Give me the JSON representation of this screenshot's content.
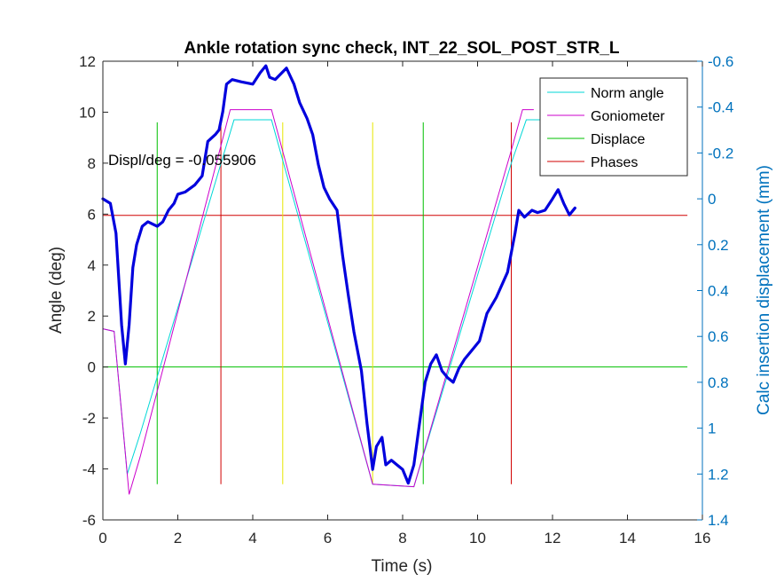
{
  "chart_data": {
    "type": "line",
    "title": "Ankle rotation sync check, INT_22_SOL_POST_STR_L",
    "xlabel": "Time (s)",
    "ylabel": "Angle (deg)",
    "ylabel_right": "Calc insertion displacement (mm)",
    "xlim": [
      0,
      16
    ],
    "ylim": [
      -6,
      12
    ],
    "ylim_right_reversed": [
      -0.6,
      1.4
    ],
    "x_ticks": [
      "0",
      "2",
      "4",
      "6",
      "8",
      "10",
      "12",
      "14",
      "16"
    ],
    "y_ticks": [
      "-6",
      "-4",
      "-2",
      "0",
      "2",
      "4",
      "6",
      "8",
      "10",
      "12"
    ],
    "y_right_ticks": [
      "-0.6",
      "-0.4",
      "-0.2",
      "0",
      "0.2",
      "0.4",
      "0.6",
      "0.8",
      "1",
      "1.2",
      "1.4"
    ],
    "annotation": "Displ/deg = -0.055906",
    "legend_position": "top-right",
    "grid": false,
    "colors": {
      "norm_angle": "#00D7D7",
      "goniometer": "#CC00CC",
      "displace": "#00C000",
      "phases": "#D00000",
      "yellow_markers": "#E6E600",
      "displacement_series": "#0000DD",
      "right_axis": "#0072BD"
    },
    "series": [
      {
        "name": "Norm angle",
        "axis": "left",
        "x": [
          0,
          0.3,
          0.65,
          1.0,
          3.5,
          4.5,
          7.2,
          8.3,
          10.9,
          11.3,
          12.0
        ],
        "y": [
          1.5,
          1.4,
          -4.2,
          -2.6,
          9.7,
          9.7,
          -4.6,
          -4.7,
          8.0,
          9.7,
          9.7
        ]
      },
      {
        "name": "Goniometer",
        "axis": "left",
        "x": [
          0,
          0.3,
          0.7,
          1.0,
          3.4,
          4.5,
          7.2,
          8.3,
          10.9,
          11.2,
          11.5
        ],
        "y": [
          1.5,
          1.4,
          -5.0,
          -3.5,
          10.1,
          10.1,
          -4.6,
          -4.7,
          8.5,
          10.1,
          10.1
        ]
      },
      {
        "name": "Displacement",
        "axis": "right",
        "x": [
          0,
          0.2,
          0.35,
          0.5,
          0.6,
          0.7,
          0.8,
          0.9,
          1.05,
          1.2,
          1.45,
          1.6,
          1.75,
          1.9,
          2.0,
          2.2,
          2.45,
          2.65,
          2.8,
          3.0,
          3.1,
          3.2,
          3.3,
          3.45,
          3.7,
          4.0,
          4.2,
          4.35,
          4.45,
          4.6,
          4.9,
          5.1,
          5.25,
          5.45,
          5.6,
          5.75,
          5.9,
          6.05,
          6.25,
          6.4,
          6.55,
          6.7,
          6.9,
          7.05,
          7.2,
          7.3,
          7.45,
          7.55,
          7.7,
          7.85,
          8.0,
          8.15,
          8.3,
          8.45,
          8.6,
          8.75,
          8.9,
          9.05,
          9.2,
          9.35,
          9.5,
          9.65,
          9.85,
          10.05,
          10.25,
          10.5,
          10.8,
          11.0,
          11.1,
          11.25,
          11.45,
          11.6,
          11.8,
          12.0,
          12.15,
          12.3,
          12.45,
          12.6
        ],
        "y": [
          0.0,
          0.02,
          0.15,
          0.55,
          0.72,
          0.55,
          0.3,
          0.2,
          0.12,
          0.1,
          0.12,
          0.1,
          0.05,
          0.02,
          -0.02,
          -0.03,
          -0.06,
          -0.1,
          -0.25,
          -0.28,
          -0.3,
          -0.38,
          -0.5,
          -0.52,
          -0.51,
          -0.5,
          -0.55,
          -0.58,
          -0.53,
          -0.52,
          -0.57,
          -0.5,
          -0.42,
          -0.35,
          -0.28,
          -0.15,
          -0.05,
          0.0,
          0.05,
          0.25,
          0.42,
          0.58,
          0.75,
          0.98,
          1.18,
          1.08,
          1.04,
          1.16,
          1.14,
          1.16,
          1.18,
          1.24,
          1.16,
          0.98,
          0.8,
          0.72,
          0.68,
          0.75,
          0.78,
          0.8,
          0.74,
          0.7,
          0.66,
          0.62,
          0.5,
          0.43,
          0.32,
          0.15,
          0.05,
          0.08,
          0.05,
          0.06,
          0.05,
          0.0,
          -0.04,
          0.02,
          0.07,
          0.04
        ]
      },
      {
        "name": "Displace",
        "axis": "left",
        "kind": "reference",
        "x": [
          0,
          15.6
        ],
        "y": [
          0,
          0
        ]
      },
      {
        "name": "Phases",
        "axis": "left",
        "kind": "reference",
        "x": [
          0,
          15.6
        ],
        "y": [
          5.95,
          5.95
        ]
      }
    ],
    "vertical_markers": [
      {
        "color": "green",
        "x": 1.45,
        "y_range": [
          -4.6,
          9.6
        ]
      },
      {
        "color": "red",
        "x": 3.15,
        "y_range": [
          -4.6,
          9.6
        ]
      },
      {
        "color": "yellow",
        "x": 4.8,
        "y_range": [
          -4.6,
          9.6
        ]
      },
      {
        "color": "yellow",
        "x": 7.2,
        "y_range": [
          -4.6,
          9.6
        ]
      },
      {
        "color": "green",
        "x": 8.55,
        "y_range": [
          -4.6,
          9.6
        ]
      },
      {
        "color": "red",
        "x": 10.9,
        "y_range": [
          -4.6,
          9.6
        ]
      }
    ],
    "legend": [
      "Norm angle",
      "Goniometer",
      "Displace",
      "Phases"
    ]
  }
}
